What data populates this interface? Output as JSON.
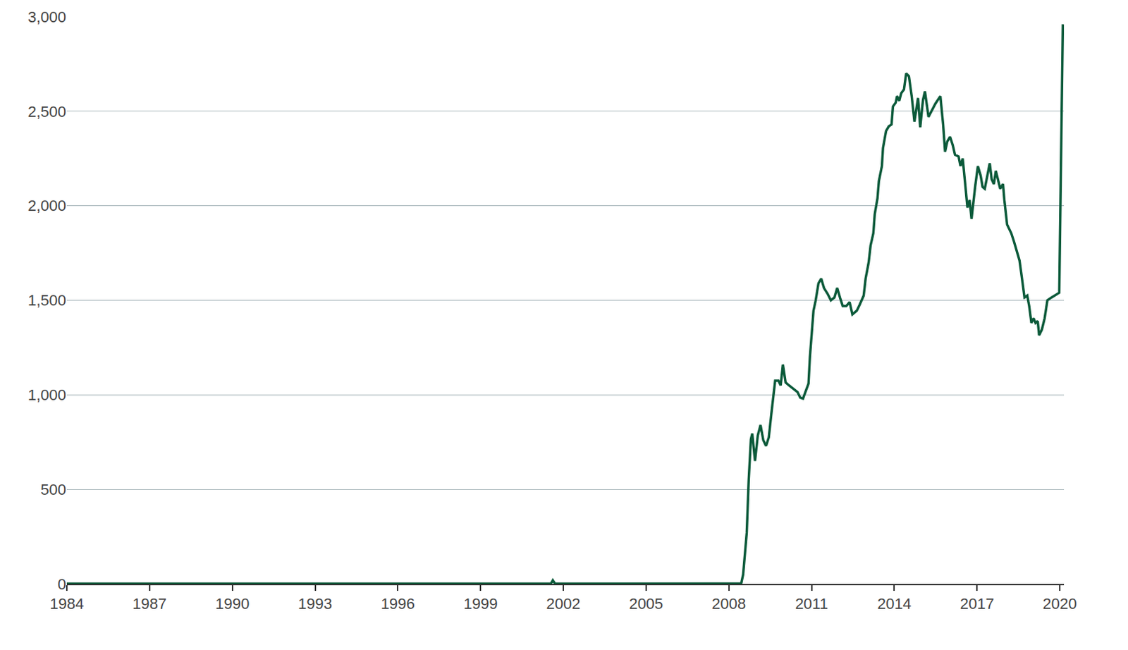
{
  "chart_data": {
    "type": "line",
    "color": "#0b5a3a",
    "grid": true,
    "x": [
      1984,
      2001.55,
      2001.62,
      2001.7,
      2008.45,
      2008.52,
      2008.65,
      2008.72,
      2008.8,
      2008.85,
      2008.95,
      2009.05,
      2009.15,
      2009.25,
      2009.35,
      2009.45,
      2009.55,
      2009.68,
      2009.8,
      2009.88,
      2009.96,
      2010.06,
      2010.18,
      2010.36,
      2010.49,
      2010.59,
      2010.69,
      2010.79,
      2010.89,
      2010.94,
      2011.07,
      2011.15,
      2011.25,
      2011.35,
      2011.45,
      2011.58,
      2011.7,
      2011.83,
      2011.93,
      2012.03,
      2012.13,
      2012.26,
      2012.38,
      2012.48,
      2012.64,
      2012.74,
      2012.89,
      2012.96,
      2013.07,
      2013.14,
      2013.24,
      2013.29,
      2013.39,
      2013.44,
      2013.55,
      2013.59,
      2013.7,
      2013.8,
      2013.9,
      2013.95,
      2014.05,
      2014.1,
      2014.18,
      2014.25,
      2014.35,
      2014.43,
      2014.53,
      2014.63,
      2014.73,
      2014.86,
      2014.94,
      2015.04,
      2015.11,
      2015.24,
      2015.36,
      2015.49,
      2015.67,
      2015.77,
      2015.84,
      2015.92,
      2016.02,
      2016.12,
      2016.2,
      2016.33,
      2016.4,
      2016.48,
      2016.58,
      2016.65,
      2016.73,
      2016.8,
      2016.93,
      2017.03,
      2017.13,
      2017.2,
      2017.28,
      2017.35,
      2017.46,
      2017.53,
      2017.61,
      2017.68,
      2017.76,
      2017.84,
      2017.94,
      2017.99,
      2018.09,
      2018.24,
      2018.34,
      2018.44,
      2018.54,
      2018.62,
      2018.72,
      2018.82,
      2018.89,
      2018.97,
      2019.05,
      2019.12,
      2019.2,
      2019.25,
      2019.35,
      2019.45,
      2019.55,
      2019.7,
      2019.91,
      2019.98,
      2020.11
    ],
    "values": [
      1,
      1,
      19,
      1,
      2,
      50,
      270,
      545,
      765,
      795,
      650,
      785,
      840,
      760,
      730,
      775,
      910,
      1075,
      1075,
      1050,
      1160,
      1065,
      1050,
      1030,
      1015,
      985,
      980,
      1020,
      1060,
      1200,
      1445,
      1500,
      1590,
      1615,
      1565,
      1535,
      1500,
      1515,
      1565,
      1515,
      1470,
      1470,
      1490,
      1425,
      1445,
      1475,
      1525,
      1615,
      1700,
      1790,
      1855,
      1955,
      2040,
      2130,
      2210,
      2305,
      2395,
      2420,
      2430,
      2525,
      2545,
      2580,
      2555,
      2595,
      2615,
      2700,
      2685,
      2580,
      2445,
      2570,
      2415,
      2560,
      2605,
      2470,
      2505,
      2540,
      2580,
      2430,
      2285,
      2340,
      2365,
      2320,
      2270,
      2260,
      2210,
      2250,
      2100,
      1990,
      2030,
      1930,
      2100,
      2210,
      2160,
      2100,
      2090,
      2140,
      2225,
      2140,
      2115,
      2185,
      2130,
      2090,
      2115,
      2030,
      1900,
      1855,
      1810,
      1760,
      1710,
      1625,
      1515,
      1525,
      1470,
      1380,
      1405,
      1380,
      1390,
      1315,
      1345,
      1405,
      1500,
      1515,
      1535,
      1540,
      2960
    ],
    "xlim": [
      1984,
      2020.15
    ],
    "xticks": [
      1984,
      1987,
      1990,
      1993,
      1996,
      1999,
      2002,
      2005,
      2008,
      2011,
      2014,
      2017,
      2020
    ],
    "ylim": [
      0,
      3000
    ],
    "yticks": [
      0,
      500,
      {
        "value": 1000,
        "label": "1,000"
      },
      {
        "value": 1500,
        "label": "1,500"
      },
      {
        "value": 2000,
        "label": "2,000"
      },
      {
        "value": 2500,
        "label": "2,500"
      },
      {
        "value": 3000,
        "label": "3,000"
      }
    ]
  }
}
